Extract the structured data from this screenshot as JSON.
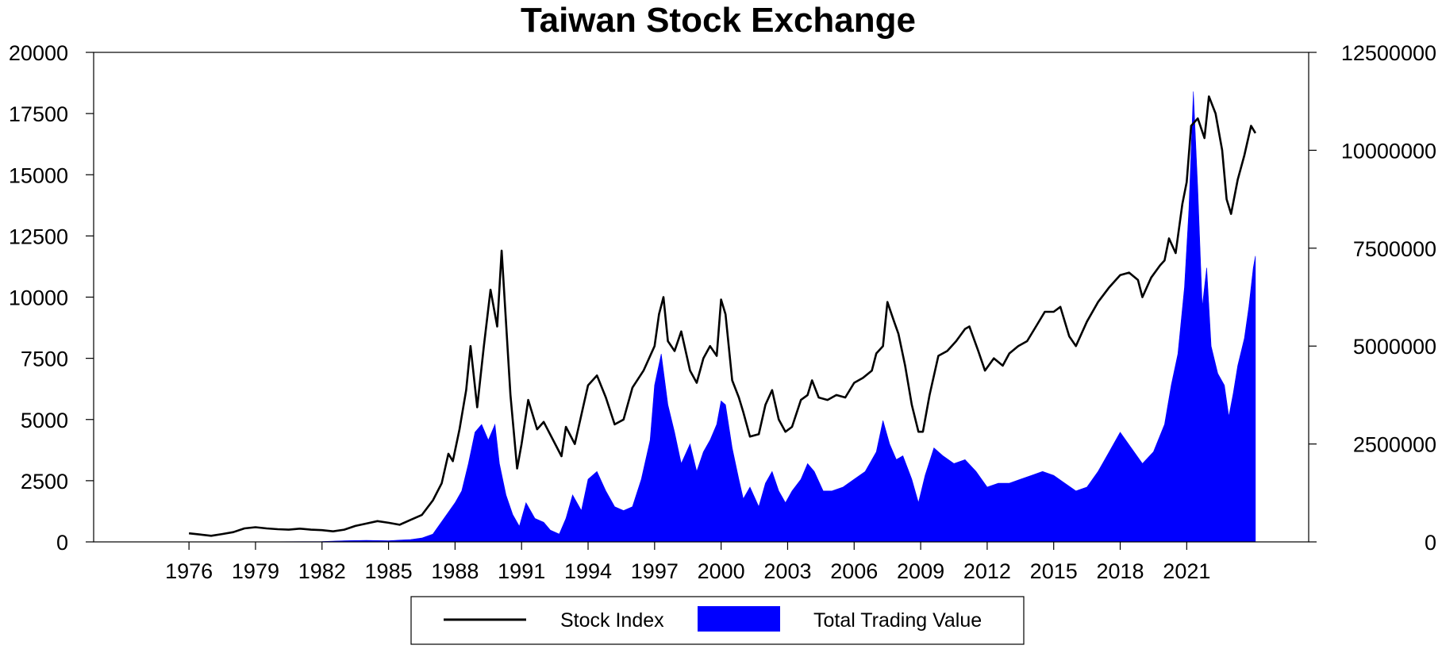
{
  "chart_data": {
    "type": "line+area",
    "title": "Taiwan Stock Exchange",
    "legend": {
      "placement": "bottom-center"
    },
    "left_axis": {
      "ylim": [
        0,
        20000
      ],
      "ticks": [
        "0",
        "2500",
        "5000",
        "7500",
        "10000",
        "12500",
        "15000",
        "17500",
        "20000"
      ]
    },
    "right_axis": {
      "ylim": [
        0,
        12500000
      ],
      "ticks": [
        "0",
        "2500000",
        "5000000",
        "7500000",
        "10000000",
        "12500000"
      ]
    },
    "x_axis": {
      "xlim": [
        1971.7,
        2026.5
      ],
      "ticks": [
        "1976",
        "1979",
        "1982",
        "1985",
        "1988",
        "1991",
        "1994",
        "1997",
        "2000",
        "2003",
        "2006",
        "2009",
        "2012",
        "2015",
        "2018",
        "2021"
      ]
    },
    "grid": false,
    "series": [
      {
        "name": "Stock Index",
        "axis": "left",
        "color": "#000000",
        "x": [
          1976.0,
          1976.5,
          1977.0,
          1977.5,
          1978.0,
          1978.5,
          1979.0,
          1979.5,
          1980.0,
          1980.5,
          1981.0,
          1981.5,
          1982.0,
          1982.5,
          1983.0,
          1983.5,
          1984.0,
          1984.5,
          1985.0,
          1985.5,
          1986.0,
          1986.5,
          1987.0,
          1987.4,
          1987.7,
          1987.9,
          1988.2,
          1988.5,
          1988.7,
          1989.0,
          1989.3,
          1989.6,
          1989.9,
          1990.1,
          1990.5,
          1990.8,
          1991.0,
          1991.3,
          1991.7,
          1992.0,
          1992.4,
          1992.8,
          1993.0,
          1993.4,
          1993.8,
          1994.0,
          1994.4,
          1994.8,
          1995.2,
          1995.6,
          1996.0,
          1996.5,
          1997.0,
          1997.2,
          1997.4,
          1997.6,
          1997.9,
          1998.2,
          1998.6,
          1998.9,
          1999.2,
          1999.5,
          1999.8,
          2000.0,
          2000.2,
          2000.5,
          2000.8,
          2001.0,
          2001.3,
          2001.7,
          2002.0,
          2002.3,
          2002.6,
          2002.9,
          2003.2,
          2003.6,
          2003.9,
          2004.1,
          2004.4,
          2004.8,
          2005.2,
          2005.6,
          2006.0,
          2006.4,
          2006.8,
          2007.0,
          2007.3,
          2007.5,
          2007.8,
          2008.0,
          2008.3,
          2008.6,
          2008.9,
          2009.1,
          2009.4,
          2009.8,
          2010.2,
          2010.6,
          2011.0,
          2011.2,
          2011.6,
          2011.9,
          2012.3,
          2012.7,
          2013.0,
          2013.4,
          2013.8,
          2014.2,
          2014.6,
          2015.0,
          2015.3,
          2015.7,
          2016.0,
          2016.5,
          2017.0,
          2017.5,
          2018.0,
          2018.4,
          2018.8,
          2019.0,
          2019.4,
          2019.8,
          2020.0,
          2020.2,
          2020.5,
          2020.8,
          2021.0,
          2021.2,
          2021.5,
          2021.8,
          2022.0,
          2022.3,
          2022.6,
          2022.8,
          2023.0,
          2023.3,
          2023.6,
          2023.9,
          2024.1
        ],
        "values": [
          350,
          300,
          250,
          320,
          400,
          550,
          600,
          550,
          520,
          500,
          540,
          500,
          480,
          430,
          500,
          650,
          750,
          850,
          780,
          700,
          900,
          1100,
          1700,
          2400,
          3600,
          3300,
          4600,
          6200,
          8000,
          5500,
          8000,
          10300,
          8800,
          11900,
          6000,
          3000,
          4000,
          5800,
          4600,
          4900,
          4200,
          3500,
          4700,
          4000,
          5600,
          6400,
          6800,
          5900,
          4800,
          5000,
          6300,
          7000,
          8000,
          9300,
          10000,
          8200,
          7800,
          8600,
          7000,
          6500,
          7500,
          8000,
          7600,
          9900,
          9300,
          6600,
          5900,
          5300,
          4300,
          4400,
          5600,
          6200,
          5000,
          4500,
          4700,
          5800,
          6000,
          6600,
          5900,
          5800,
          6000,
          5900,
          6500,
          6700,
          7000,
          7700,
          8000,
          9800,
          9000,
          8500,
          7200,
          5600,
          4500,
          4500,
          6000,
          7600,
          7800,
          8200,
          8700,
          8800,
          7800,
          7000,
          7500,
          7200,
          7700,
          8000,
          8200,
          8800,
          9400,
          9400,
          9600,
          8400,
          8000,
          9000,
          9800,
          10400,
          10900,
          11000,
          10700,
          10000,
          10800,
          11300,
          11500,
          12400,
          11800,
          13800,
          14700,
          17000,
          17300,
          16500,
          18200,
          17500,
          16000,
          14000,
          13400,
          14800,
          15800,
          17000,
          16700
        ]
      },
      {
        "name": "Total Trading Value",
        "axis": "right",
        "color": "#0000ff",
        "x": [
          1976.0,
          1978.0,
          1980.0,
          1982.0,
          1983.0,
          1984.0,
          1985.0,
          1986.0,
          1986.5,
          1987.0,
          1987.5,
          1988.0,
          1988.3,
          1988.6,
          1988.9,
          1989.2,
          1989.5,
          1989.8,
          1990.0,
          1990.3,
          1990.6,
          1990.9,
          1991.2,
          1991.6,
          1992.0,
          1992.3,
          1992.7,
          1993.0,
          1993.3,
          1993.7,
          1994.0,
          1994.4,
          1994.8,
          1995.2,
          1995.6,
          1996.0,
          1996.4,
          1996.8,
          1997.0,
          1997.3,
          1997.6,
          1997.9,
          1998.2,
          1998.6,
          1998.9,
          1999.2,
          1999.5,
          1999.8,
          2000.0,
          2000.2,
          2000.5,
          2000.8,
          2001.0,
          2001.3,
          2001.7,
          2002.0,
          2002.3,
          2002.6,
          2002.9,
          2003.2,
          2003.6,
          2003.9,
          2004.2,
          2004.6,
          2005.0,
          2005.5,
          2006.0,
          2006.5,
          2007.0,
          2007.3,
          2007.6,
          2007.9,
          2008.2,
          2008.6,
          2008.9,
          2009.2,
          2009.6,
          2010.0,
          2010.5,
          2011.0,
          2011.5,
          2012.0,
          2012.5,
          2013.0,
          2013.5,
          2014.0,
          2014.5,
          2015.0,
          2015.5,
          2016.0,
          2016.5,
          2017.0,
          2017.5,
          2018.0,
          2018.5,
          2019.0,
          2019.5,
          2020.0,
          2020.3,
          2020.6,
          2020.9,
          2021.1,
          2021.3,
          2021.5,
          2021.7,
          2021.9,
          2022.1,
          2022.4,
          2022.7,
          2022.9,
          2023.1,
          2023.3,
          2023.6,
          2023.8,
          2024.0,
          2024.1
        ],
        "values": [
          0,
          5000,
          5000,
          10000,
          30000,
          40000,
          30000,
          60000,
          100000,
          200000,
          600000,
          1000000,
          1300000,
          2000000,
          2800000,
          3000000,
          2600000,
          3000000,
          2000000,
          1200000,
          700000,
          400000,
          1000000,
          600000,
          500000,
          300000,
          200000,
          600000,
          1200000,
          800000,
          1600000,
          1800000,
          1300000,
          900000,
          800000,
          900000,
          1600000,
          2600000,
          4000000,
          4800000,
          3500000,
          2800000,
          2000000,
          2500000,
          1800000,
          2300000,
          2600000,
          3000000,
          3600000,
          3500000,
          2400000,
          1600000,
          1100000,
          1400000,
          900000,
          1500000,
          1800000,
          1300000,
          1000000,
          1300000,
          1600000,
          2000000,
          1800000,
          1300000,
          1300000,
          1400000,
          1600000,
          1800000,
          2300000,
          3100000,
          2500000,
          2100000,
          2200000,
          1600000,
          1000000,
          1700000,
          2400000,
          2200000,
          2000000,
          2100000,
          1800000,
          1400000,
          1500000,
          1500000,
          1600000,
          1700000,
          1800000,
          1700000,
          1500000,
          1300000,
          1400000,
          1800000,
          2300000,
          2800000,
          2400000,
          2000000,
          2300000,
          3000000,
          4000000,
          4800000,
          6500000,
          8500000,
          11500000,
          9000000,
          6000000,
          7000000,
          5000000,
          4300000,
          4000000,
          3200000,
          3800000,
          4500000,
          5200000,
          6000000,
          7000000,
          7300000
        ]
      }
    ]
  }
}
